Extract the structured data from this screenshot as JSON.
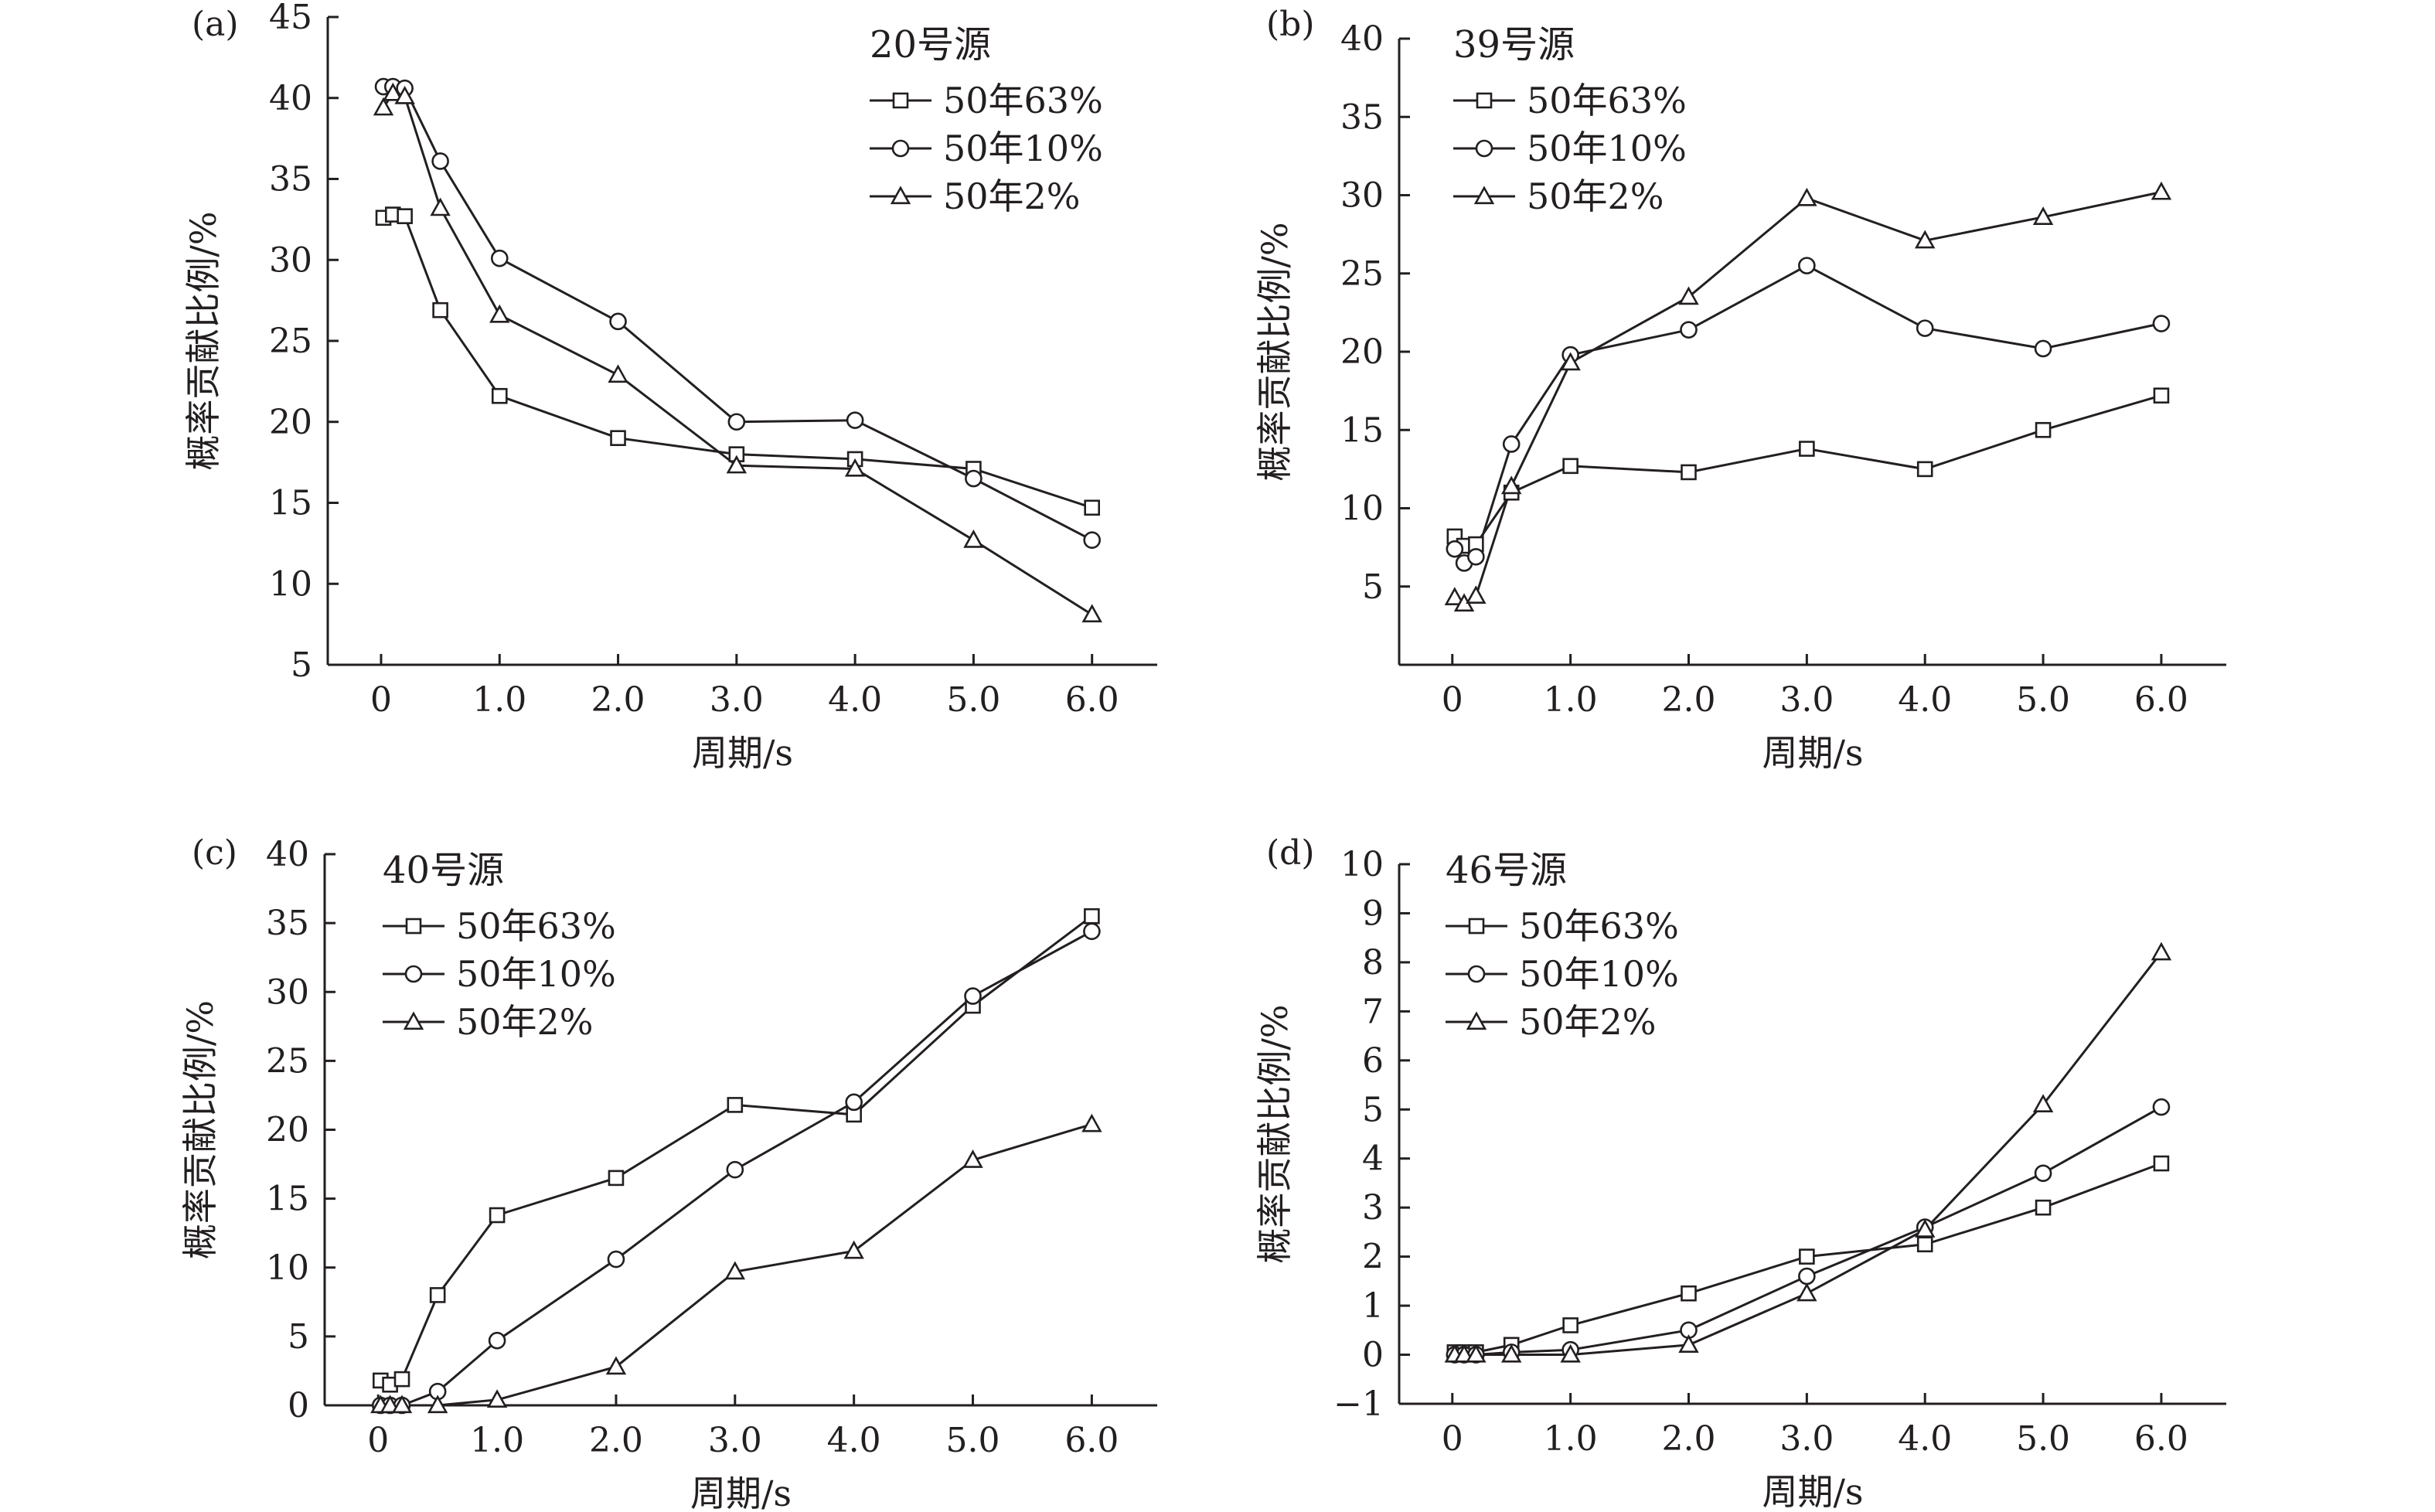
{
  "colors": {
    "ink": "#231f20",
    "background": "#ffffff"
  },
  "chart_data": [
    {
      "type": "line",
      "panel_label": "(a)",
      "title": "20号源",
      "xlabel": "周期/s",
      "ylabel": "概率贡献比例/%",
      "xlim": [
        -0.45,
        6.55
      ],
      "ylim": [
        5,
        45
      ],
      "yticks": [
        5,
        10,
        15,
        20,
        25,
        30,
        35,
        40,
        45
      ],
      "xticks": [
        0,
        1,
        2,
        3,
        4,
        5,
        6
      ],
      "xtick_labels": [
        "0",
        "1.0",
        "2.0",
        "3.0",
        "4.0",
        "5.0",
        "6.0"
      ],
      "ytick_labels": [
        "5",
        "10",
        "15",
        "20",
        "25",
        "30",
        "35",
        "40",
        "45"
      ],
      "legend_position": "top-right",
      "grid": false,
      "x": [
        0.02,
        0.1,
        0.2,
        0.5,
        1,
        2,
        3,
        4,
        5,
        6
      ],
      "series": [
        {
          "name": "50年63%",
          "marker": "square",
          "values": [
            32.6,
            32.8,
            32.7,
            26.9,
            21.6,
            19.0,
            18.0,
            17.7,
            17.1,
            14.7
          ]
        },
        {
          "name": "50年10%",
          "marker": "circle",
          "values": [
            40.7,
            40.7,
            40.6,
            36.1,
            30.1,
            26.2,
            20.0,
            20.1,
            16.5,
            12.7
          ]
        },
        {
          "name": "50年2%",
          "marker": "triangle",
          "values": [
            39.4,
            40.3,
            40.1,
            33.2,
            26.6,
            22.9,
            17.3,
            17.1,
            12.7,
            8.1
          ]
        }
      ]
    },
    {
      "type": "line",
      "panel_label": "(b)",
      "title": "39号源",
      "xlabel": "周期/s",
      "ylabel": "概率贡献比例/%",
      "xlim": [
        -0.45,
        6.55
      ],
      "ylim": [
        0,
        40
      ],
      "yticks": [
        5,
        10,
        15,
        20,
        25,
        30,
        35,
        40
      ],
      "xticks": [
        0,
        1,
        2,
        3,
        4,
        5,
        6
      ],
      "xtick_labels": [
        "0",
        "1.0",
        "2.0",
        "3.0",
        "4.0",
        "5.0",
        "6.0"
      ],
      "ytick_labels": [
        "5",
        "10",
        "15",
        "20",
        "25",
        "30",
        "35",
        "40"
      ],
      "legend_position": "top-left",
      "grid": false,
      "x": [
        0.02,
        0.1,
        0.2,
        0.5,
        1,
        2,
        3,
        4,
        5,
        6
      ],
      "series": [
        {
          "name": "50年63%",
          "marker": "square",
          "values": [
            8.2,
            7.6,
            7.7,
            11.0,
            12.7,
            12.3,
            13.8,
            12.5,
            15.0,
            17.2
          ]
        },
        {
          "name": "50年10%",
          "marker": "circle",
          "values": [
            7.4,
            6.5,
            6.9,
            14.1,
            19.8,
            21.4,
            25.5,
            21.5,
            20.2,
            21.8
          ]
        },
        {
          "name": "50年2%",
          "marker": "triangle",
          "values": [
            4.3,
            3.9,
            4.4,
            11.4,
            19.3,
            23.5,
            29.8,
            27.1,
            28.6,
            30.2
          ]
        }
      ]
    },
    {
      "type": "line",
      "panel_label": "(c)",
      "title": "40号源",
      "xlabel": "周期/s",
      "ylabel": "概率贡献比例/%",
      "xlim": [
        -0.45,
        6.55
      ],
      "ylim": [
        0,
        40
      ],
      "yticks": [
        0,
        5,
        10,
        15,
        20,
        25,
        30,
        35,
        40
      ],
      "xticks": [
        0,
        1,
        2,
        3,
        4,
        5,
        6
      ],
      "xtick_labels": [
        "0",
        "1.0",
        "2.0",
        "3.0",
        "4.0",
        "5.0",
        "6.0"
      ],
      "ytick_labels": [
        "0",
        "5",
        "10",
        "15",
        "20",
        "25",
        "30",
        "35",
        "40"
      ],
      "legend_position": "top-left",
      "grid": false,
      "x": [
        0.02,
        0.1,
        0.2,
        0.5,
        1,
        2,
        3,
        4,
        5,
        6
      ],
      "series": [
        {
          "name": "50年63%",
          "marker": "square",
          "values": [
            1.8,
            1.5,
            1.9,
            8.0,
            13.8,
            16.5,
            21.8,
            21.1,
            29.0,
            35.5
          ]
        },
        {
          "name": "50年10%",
          "marker": "circle",
          "values": [
            0,
            0,
            0,
            1.0,
            4.7,
            10.6,
            17.1,
            22.0,
            29.7,
            34.4
          ]
        },
        {
          "name": "50年2%",
          "marker": "triangle",
          "values": [
            0,
            0,
            0,
            0,
            0.4,
            2.8,
            9.7,
            11.2,
            17.8,
            20.4
          ]
        }
      ]
    },
    {
      "type": "line",
      "panel_label": "(d)",
      "title": "46号源",
      "xlabel": "周期/s",
      "ylabel": "概率贡献比例/%",
      "xlim": [
        -0.45,
        6.55
      ],
      "ylim": [
        -1,
        10
      ],
      "yticks": [
        -1,
        0,
        1,
        2,
        3,
        4,
        5,
        6,
        7,
        8,
        9,
        10
      ],
      "xticks": [
        0,
        1,
        2,
        3,
        4,
        5,
        6
      ],
      "xtick_labels": [
        "0",
        "1.0",
        "2.0",
        "3.0",
        "4.0",
        "5.0",
        "6.0"
      ],
      "ytick_labels": [
        "−1",
        "0",
        "1",
        "2",
        "3",
        "4",
        "5",
        "6",
        "7",
        "8",
        "9",
        "10"
      ],
      "legend_position": "top-left",
      "grid": false,
      "x": [
        0.02,
        0.1,
        0.2,
        0.5,
        1,
        2,
        3,
        4,
        5,
        6
      ],
      "series": [
        {
          "name": "50年63%",
          "marker": "square",
          "values": [
            0.05,
            0.05,
            0.05,
            0.2,
            0.6,
            1.25,
            2.0,
            2.25,
            3.0,
            3.9
          ]
        },
        {
          "name": "50年10%",
          "marker": "circle",
          "values": [
            0,
            0,
            0,
            0.05,
            0.1,
            0.5,
            1.6,
            2.6,
            3.7,
            5.05
          ]
        },
        {
          "name": "50年2%",
          "marker": "triangle",
          "values": [
            0,
            0,
            0,
            0,
            0,
            0.2,
            1.25,
            2.55,
            5.1,
            8.2
          ]
        }
      ]
    }
  ]
}
